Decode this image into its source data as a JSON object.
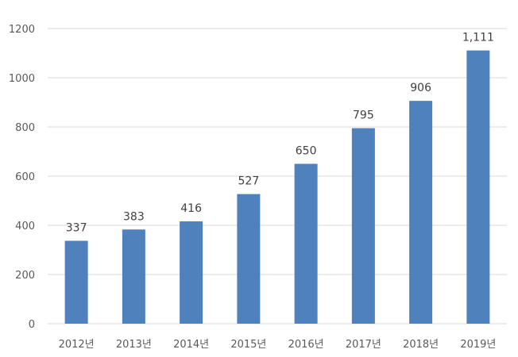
{
  "chart_data": {
    "type": "bar",
    "categories": [
      "2012년",
      "2013년",
      "2014년",
      "2015년",
      "2016년",
      "2017년",
      "2018년",
      "2019년"
    ],
    "values": [
      337,
      383,
      416,
      527,
      650,
      795,
      906,
      1111
    ],
    "data_labels": [
      "337",
      "383",
      "416",
      "527",
      "650",
      "795",
      "906",
      "1,111"
    ],
    "title": "",
    "xlabel": "",
    "ylabel": "",
    "ylim": [
      0,
      1200
    ],
    "y_ticks": [
      0,
      200,
      400,
      600,
      800,
      1000,
      1200
    ],
    "y_tick_labels": [
      "0",
      "200",
      "400",
      "600",
      "800",
      "1000",
      "1200"
    ],
    "grid": true,
    "legend": "none",
    "colors": {
      "bar": "#4f81bd",
      "grid": "#d9d9d9",
      "tick_text": "#595959",
      "label_text": "#404040"
    }
  }
}
